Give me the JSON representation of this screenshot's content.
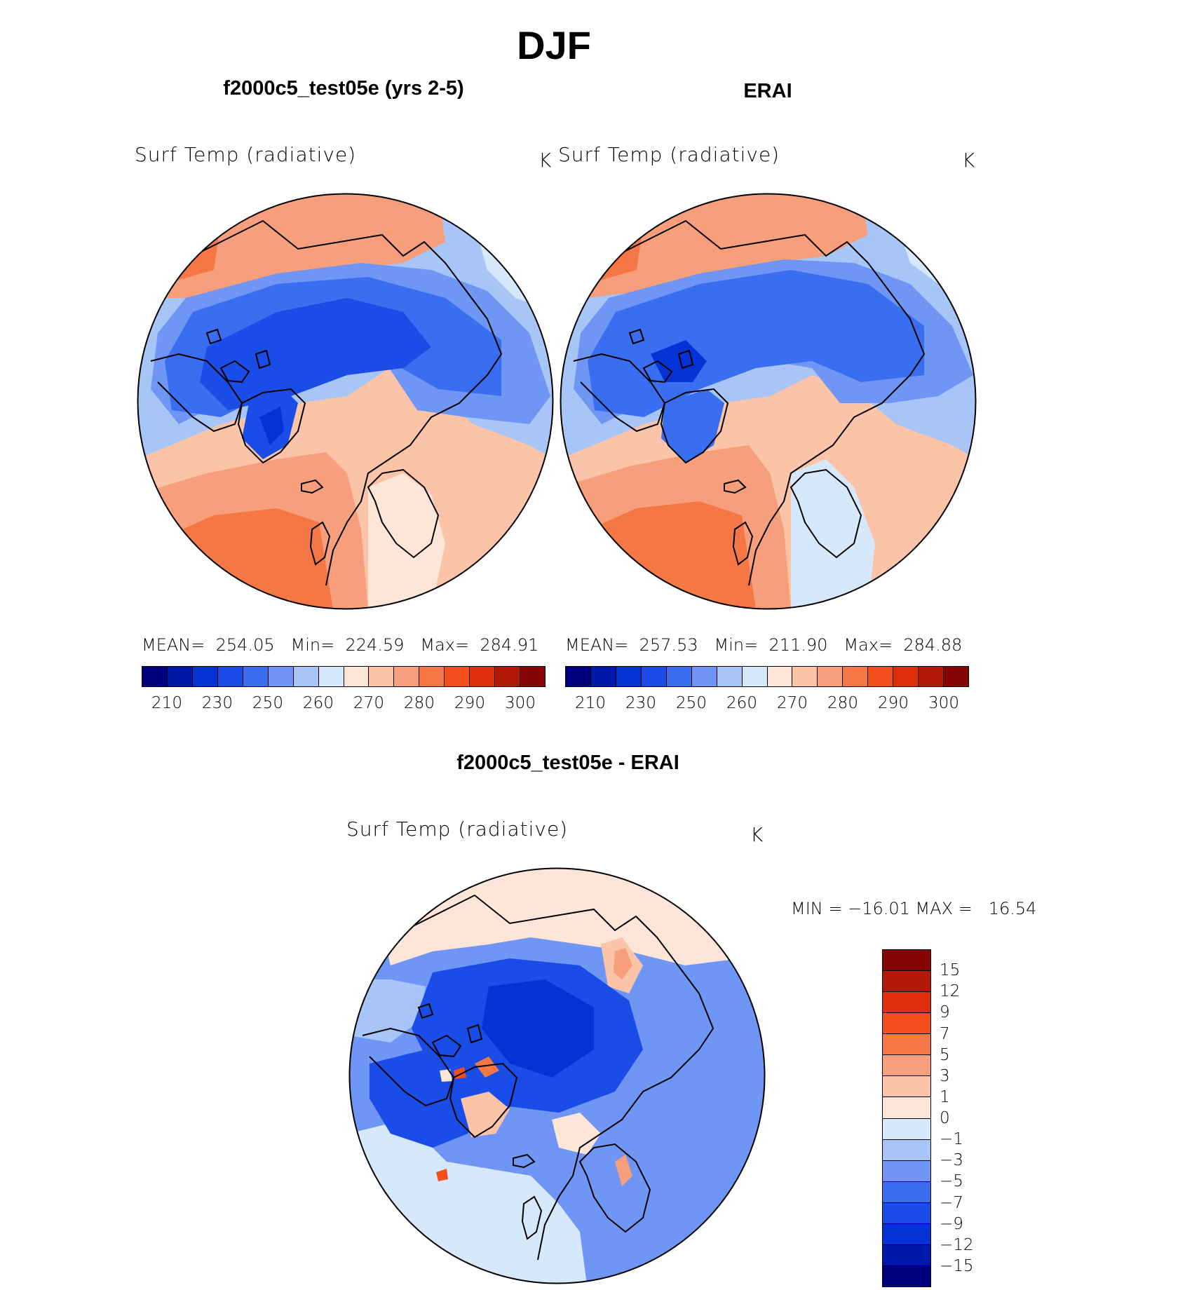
{
  "title": "DJF",
  "colors": {
    "model_scale": [
      "#00007f",
      "#0019aa",
      "#0532d4",
      "#1a4de8",
      "#3a6ef0",
      "#6f96f4",
      "#a8c5f8",
      "#d6e8fb",
      "#fde6d8",
      "#fbc3a8",
      "#f79e7c",
      "#f47745",
      "#f24f1c",
      "#de2e0a",
      "#b21906",
      "#860505"
    ],
    "diff_scale": [
      "#860505",
      "#b21906",
      "#de2e0a",
      "#f24f1c",
      "#f47745",
      "#f79e7c",
      "#fbc3a8",
      "#fde6d8",
      "#d6e8fb",
      "#a8c5f8",
      "#6f96f4",
      "#3a6ef0",
      "#1a4de8",
      "#0532d4",
      "#0019aa",
      "#00007f"
    ],
    "coastline": "#000000"
  },
  "panels": [
    {
      "title": "f2000c5_test05e (yrs 2-5)",
      "variable": "Surf Temp (radiative)",
      "units": "K",
      "stats": {
        "mean_label": "MEAN=",
        "mean": "254.05",
        "min_label": "Min=",
        "min": "224.59",
        "max_label": "Max=",
        "max": "284.91"
      }
    },
    {
      "title": "ERAI",
      "variable": "Surf Temp (radiative)",
      "units": "K",
      "stats": {
        "mean_label": "MEAN=",
        "mean": "257.53",
        "min_label": "Min=",
        "min": "211.90",
        "max_label": "Max=",
        "max": "284.88"
      }
    }
  ],
  "diff_panel": {
    "title": "f2000c5_test05e - ERAI",
    "variable": "Surf Temp (radiative)",
    "units": "K",
    "minmax": "MIN = −16.01 MAX =   16.54"
  },
  "chart_data": [
    {
      "type": "heatmap",
      "projection": "north polar stereographic",
      "title": "f2000c5_test05e (yrs 2-5)",
      "variable": "Surf Temp (radiative)",
      "units": "K",
      "contour_levels": [
        210,
        220,
        230,
        240,
        250,
        255,
        260,
        265,
        270,
        275,
        280,
        285,
        290,
        295,
        300
      ],
      "colorbar_tick_labels": [
        "210",
        "230",
        "250",
        "260",
        "270",
        "280",
        "290",
        "300"
      ],
      "mean": 254.05,
      "min": 224.59,
      "max": 284.91
    },
    {
      "type": "heatmap",
      "projection": "north polar stereographic",
      "title": "ERAI",
      "variable": "Surf Temp (radiative)",
      "units": "K",
      "contour_levels": [
        210,
        220,
        230,
        240,
        250,
        255,
        260,
        265,
        270,
        275,
        280,
        285,
        290,
        295,
        300
      ],
      "colorbar_tick_labels": [
        "210",
        "230",
        "250",
        "260",
        "270",
        "280",
        "290",
        "300"
      ],
      "mean": 257.53,
      "min": 211.9,
      "max": 284.88
    },
    {
      "type": "heatmap",
      "projection": "north polar stereographic",
      "title": "f2000c5_test05e - ERAI",
      "variable": "Surf Temp (radiative)",
      "units": "K",
      "contour_levels": [
        15,
        12,
        9,
        7,
        5,
        3,
        1,
        0,
        -1,
        -3,
        -5,
        -7,
        -9,
        -12,
        -15
      ],
      "colorbar_tick_labels": [
        "15",
        "12",
        "9",
        "7",
        "5",
        "3",
        "1",
        "0",
        "−1",
        "−3",
        "−5",
        "−7",
        "−9",
        "−12",
        "−15"
      ],
      "min": -16.01,
      "max": 16.54
    }
  ]
}
